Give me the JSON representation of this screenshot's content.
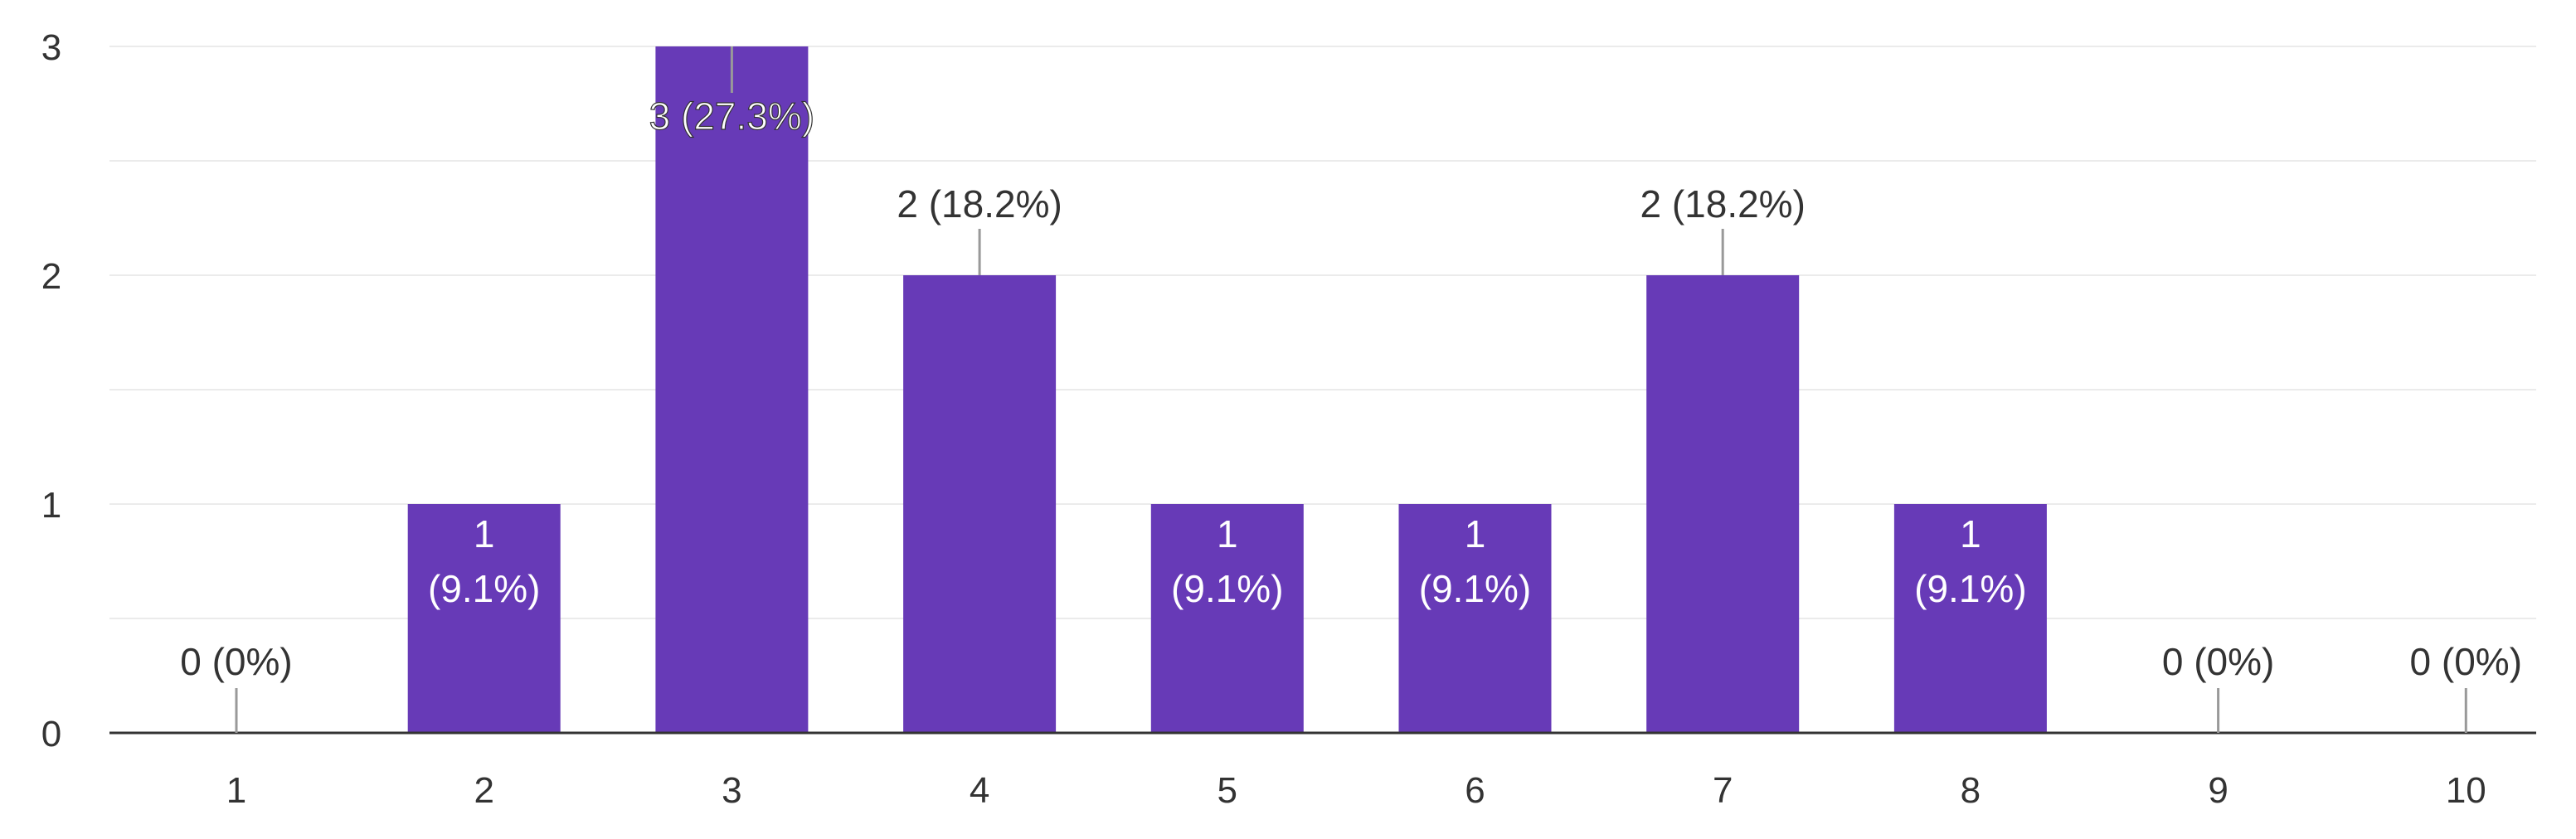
{
  "colors": {
    "bar": "#673AB7",
    "gridline": "#ebebeb",
    "baseline": "#333333",
    "leader": "#999999",
    "label_outside": "#333333",
    "label_inside": "#ffffff"
  },
  "chart_data": {
    "type": "bar",
    "title": "",
    "xlabel": "",
    "ylabel": "",
    "categories": [
      "1",
      "2",
      "3",
      "4",
      "5",
      "6",
      "7",
      "8",
      "9",
      "10"
    ],
    "values": [
      0,
      1,
      3,
      2,
      1,
      1,
      2,
      1,
      0,
      0
    ],
    "percents": [
      "0%",
      "9.1%",
      "27.3%",
      "18.2%",
      "9.1%",
      "9.1%",
      "18.2%",
      "9.1%",
      "0%",
      "0%"
    ],
    "ylim": [
      0,
      3
    ],
    "yticks": [
      "0",
      "1",
      "2",
      "3"
    ],
    "grid": true,
    "legend": "none"
  }
}
